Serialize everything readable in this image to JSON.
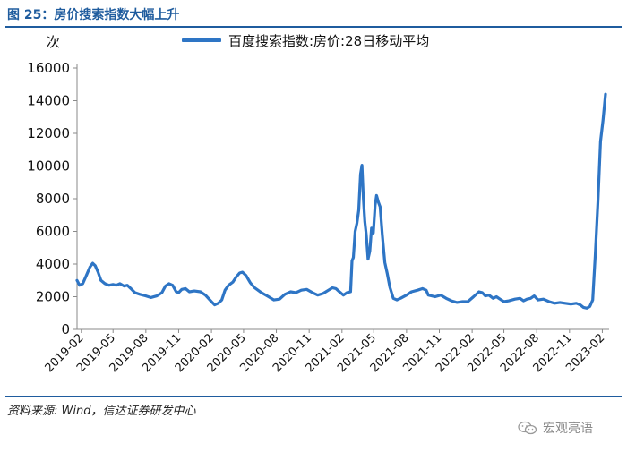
{
  "header": {
    "figure_title": "图 25：房价搜索指数大幅上升"
  },
  "footer": {
    "source": "资料来源: Wind，信达证券研发中心",
    "watermark": "宏观亮语",
    "watermark_icon": "wechat-icon"
  },
  "chart_data": {
    "type": "line",
    "title": "",
    "ylabel": "次",
    "xlabel": "",
    "ylim": [
      0,
      16000
    ],
    "yticks": [
      0,
      2000,
      4000,
      6000,
      8000,
      10000,
      12000,
      14000,
      16000
    ],
    "xlim": [
      "2019-01-20",
      "2023-02-20"
    ],
    "xticks": [
      "2019-02",
      "2019-05",
      "2019-08",
      "2019-11",
      "2020-02",
      "2020-05",
      "2020-08",
      "2020-11",
      "2021-02",
      "2021-05",
      "2021-08",
      "2021-11",
      "2022-02",
      "2022-05",
      "2022-08",
      "2022-11",
      "2023-02"
    ],
    "grid": false,
    "legend": "top",
    "series": [
      {
        "name": "百度搜索指数:房价:28日移动平均",
        "color": "#2e75c5",
        "points": [
          [
            "2019-01-20",
            3000
          ],
          [
            "2019-01-27",
            2700
          ],
          [
            "2019-02-05",
            2800
          ],
          [
            "2019-02-15",
            3300
          ],
          [
            "2019-02-25",
            3800
          ],
          [
            "2019-03-05",
            4050
          ],
          [
            "2019-03-12",
            3900
          ],
          [
            "2019-03-20",
            3500
          ],
          [
            "2019-03-28",
            3000
          ],
          [
            "2019-04-08",
            2800
          ],
          [
            "2019-04-20",
            2700
          ],
          [
            "2019-05-01",
            2750
          ],
          [
            "2019-05-10",
            2700
          ],
          [
            "2019-05-20",
            2800
          ],
          [
            "2019-06-01",
            2650
          ],
          [
            "2019-06-10",
            2700
          ],
          [
            "2019-06-20",
            2500
          ],
          [
            "2019-07-01",
            2250
          ],
          [
            "2019-07-15",
            2150
          ],
          [
            "2019-08-01",
            2050
          ],
          [
            "2019-08-15",
            1950
          ],
          [
            "2019-09-01",
            2050
          ],
          [
            "2019-09-15",
            2250
          ],
          [
            "2019-09-25",
            2650
          ],
          [
            "2019-10-05",
            2800
          ],
          [
            "2019-10-15",
            2700
          ],
          [
            "2019-10-25",
            2300
          ],
          [
            "2019-11-01",
            2250
          ],
          [
            "2019-11-10",
            2450
          ],
          [
            "2019-11-20",
            2500
          ],
          [
            "2019-12-01",
            2300
          ],
          [
            "2019-12-15",
            2350
          ],
          [
            "2020-01-01",
            2300
          ],
          [
            "2020-01-15",
            2100
          ],
          [
            "2020-02-01",
            1700
          ],
          [
            "2020-02-10",
            1500
          ],
          [
            "2020-02-20",
            1600
          ],
          [
            "2020-03-01",
            1800
          ],
          [
            "2020-03-10",
            2400
          ],
          [
            "2020-03-20",
            2700
          ],
          [
            "2020-04-01",
            2900
          ],
          [
            "2020-04-10",
            3200
          ],
          [
            "2020-04-20",
            3450
          ],
          [
            "2020-04-28",
            3500
          ],
          [
            "2020-05-08",
            3300
          ],
          [
            "2020-05-20",
            2850
          ],
          [
            "2020-06-01",
            2550
          ],
          [
            "2020-06-20",
            2250
          ],
          [
            "2020-07-10",
            2000
          ],
          [
            "2020-07-25",
            1800
          ],
          [
            "2020-08-10",
            1850
          ],
          [
            "2020-08-25",
            2150
          ],
          [
            "2020-09-10",
            2300
          ],
          [
            "2020-09-25",
            2250
          ],
          [
            "2020-10-10",
            2400
          ],
          [
            "2020-10-25",
            2450
          ],
          [
            "2020-11-10",
            2250
          ],
          [
            "2020-11-25",
            2100
          ],
          [
            "2020-12-10",
            2200
          ],
          [
            "2020-12-25",
            2400
          ],
          [
            "2021-01-05",
            2550
          ],
          [
            "2021-01-15",
            2500
          ],
          [
            "2021-01-25",
            2300
          ],
          [
            "2021-02-05",
            2100
          ],
          [
            "2021-02-15",
            2250
          ],
          [
            "2021-02-25",
            2300
          ],
          [
            "2021-03-01",
            4200
          ],
          [
            "2021-03-05",
            4400
          ],
          [
            "2021-03-10",
            6000
          ],
          [
            "2021-03-15",
            6500
          ],
          [
            "2021-03-20",
            7300
          ],
          [
            "2021-03-25",
            9500
          ],
          [
            "2021-03-29",
            10050
          ],
          [
            "2021-04-02",
            8000
          ],
          [
            "2021-04-06",
            6600
          ],
          [
            "2021-04-10",
            5800
          ],
          [
            "2021-04-15",
            4300
          ],
          [
            "2021-04-20",
            4800
          ],
          [
            "2021-04-25",
            6200
          ],
          [
            "2021-04-30",
            5900
          ],
          [
            "2021-05-05",
            7600
          ],
          [
            "2021-05-09",
            8200
          ],
          [
            "2021-05-14",
            7800
          ],
          [
            "2021-05-19",
            7500
          ],
          [
            "2021-05-25",
            5800
          ],
          [
            "2021-06-01",
            4100
          ],
          [
            "2021-06-08",
            3400
          ],
          [
            "2021-06-15",
            2600
          ],
          [
            "2021-06-25",
            1900
          ],
          [
            "2021-07-05",
            1800
          ],
          [
            "2021-07-15",
            1900
          ],
          [
            "2021-08-01",
            2100
          ],
          [
            "2021-08-15",
            2300
          ],
          [
            "2021-09-01",
            2400
          ],
          [
            "2021-09-15",
            2500
          ],
          [
            "2021-09-25",
            2400
          ],
          [
            "2021-10-01",
            2100
          ],
          [
            "2021-10-20",
            2000
          ],
          [
            "2021-11-05",
            2100
          ],
          [
            "2021-11-20",
            1900
          ],
          [
            "2021-12-05",
            1750
          ],
          [
            "2021-12-20",
            1650
          ],
          [
            "2022-01-05",
            1700
          ],
          [
            "2022-01-20",
            1700
          ],
          [
            "2022-02-05",
            2000
          ],
          [
            "2022-02-20",
            2300
          ],
          [
            "2022-03-01",
            2250
          ],
          [
            "2022-03-10",
            2050
          ],
          [
            "2022-03-20",
            2100
          ],
          [
            "2022-04-01",
            1900
          ],
          [
            "2022-04-10",
            2000
          ],
          [
            "2022-04-20",
            1850
          ],
          [
            "2022-05-01",
            1700
          ],
          [
            "2022-05-15",
            1750
          ],
          [
            "2022-06-01",
            1850
          ],
          [
            "2022-06-15",
            1900
          ],
          [
            "2022-06-25",
            1750
          ],
          [
            "2022-07-05",
            1850
          ],
          [
            "2022-07-15",
            1900
          ],
          [
            "2022-07-25",
            2050
          ],
          [
            "2022-08-05",
            1800
          ],
          [
            "2022-08-20",
            1850
          ],
          [
            "2022-09-05",
            1700
          ],
          [
            "2022-09-20",
            1600
          ],
          [
            "2022-10-05",
            1650
          ],
          [
            "2022-10-20",
            1600
          ],
          [
            "2022-11-05",
            1550
          ],
          [
            "2022-11-20",
            1600
          ],
          [
            "2022-12-01",
            1500
          ],
          [
            "2022-12-10",
            1350
          ],
          [
            "2022-12-20",
            1300
          ],
          [
            "2022-12-28",
            1400
          ],
          [
            "2023-01-05",
            1800
          ],
          [
            "2023-01-12",
            4500
          ],
          [
            "2023-01-20",
            8000
          ],
          [
            "2023-01-27",
            11500
          ],
          [
            "2023-02-03",
            12800
          ],
          [
            "2023-02-10",
            14400
          ]
        ]
      }
    ]
  }
}
